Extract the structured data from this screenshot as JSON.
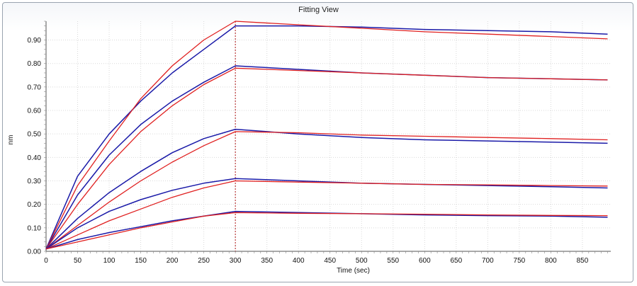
{
  "window": {
    "title": "Fitting View"
  },
  "chart_data": {
    "type": "line",
    "title": "Fitting View",
    "xlabel": "Time (sec)",
    "ylabel": "nm",
    "xlim": [
      0,
      895
    ],
    "ylim": [
      0,
      0.98
    ],
    "x_ticks": [
      0,
      50,
      100,
      150,
      200,
      250,
      300,
      350,
      400,
      450,
      500,
      550,
      600,
      650,
      700,
      750,
      800,
      850
    ],
    "y_ticks": [
      0.0,
      0.1,
      0.2,
      0.3,
      0.4,
      0.5,
      0.6,
      0.7,
      0.8,
      0.9
    ],
    "y_tick_labels": [
      "0.00",
      "0.10",
      "0.20",
      "0.30",
      "0.40",
      "0.50",
      "0.60",
      "0.70",
      "0.80",
      "0.90"
    ],
    "grid": true,
    "phase_marker_x": 300,
    "colors": {
      "measured": "#1a1aa8",
      "fit": "#e02020",
      "marker": "#b01818",
      "grid": "#d9d9d9"
    },
    "series": [
      {
        "kind": "measured",
        "x": [
          0,
          50,
          100,
          150,
          200,
          250,
          300,
          400,
          500,
          600,
          700,
          800,
          890
        ],
        "values": [
          0.01,
          0.32,
          0.5,
          0.64,
          0.76,
          0.86,
          0.96,
          0.96,
          0.955,
          0.945,
          0.94,
          0.935,
          0.925
        ]
      },
      {
        "kind": "fit",
        "x": [
          0,
          50,
          100,
          150,
          200,
          250,
          300,
          400,
          500,
          600,
          700,
          800,
          890
        ],
        "values": [
          0.01,
          0.28,
          0.47,
          0.65,
          0.79,
          0.9,
          0.98,
          0.965,
          0.95,
          0.935,
          0.925,
          0.915,
          0.905
        ]
      },
      {
        "kind": "measured",
        "x": [
          0,
          50,
          100,
          150,
          200,
          250,
          300,
          400,
          500,
          600,
          700,
          800,
          890
        ],
        "values": [
          0.01,
          0.24,
          0.41,
          0.54,
          0.64,
          0.72,
          0.79,
          0.775,
          0.76,
          0.75,
          0.74,
          0.735,
          0.73
        ]
      },
      {
        "kind": "fit",
        "x": [
          0,
          50,
          100,
          150,
          200,
          250,
          300,
          400,
          500,
          600,
          700,
          800,
          890
        ],
        "values": [
          0.01,
          0.2,
          0.37,
          0.51,
          0.62,
          0.71,
          0.78,
          0.77,
          0.76,
          0.75,
          0.74,
          0.735,
          0.73
        ]
      },
      {
        "kind": "measured",
        "x": [
          0,
          50,
          100,
          150,
          200,
          250,
          300,
          400,
          500,
          600,
          700,
          800,
          890
        ],
        "values": [
          0.01,
          0.14,
          0.25,
          0.34,
          0.42,
          0.48,
          0.52,
          0.5,
          0.485,
          0.475,
          0.47,
          0.465,
          0.46
        ]
      },
      {
        "kind": "fit",
        "x": [
          0,
          50,
          100,
          150,
          200,
          250,
          300,
          400,
          500,
          600,
          700,
          800,
          890
        ],
        "values": [
          0.01,
          0.11,
          0.21,
          0.3,
          0.38,
          0.45,
          0.51,
          0.505,
          0.495,
          0.49,
          0.485,
          0.48,
          0.475
        ]
      },
      {
        "kind": "measured",
        "x": [
          0,
          50,
          100,
          150,
          200,
          250,
          300,
          400,
          500,
          600,
          700,
          800,
          890
        ],
        "values": [
          0.01,
          0.1,
          0.17,
          0.22,
          0.26,
          0.29,
          0.31,
          0.3,
          0.29,
          0.285,
          0.28,
          0.275,
          0.27
        ]
      },
      {
        "kind": "fit",
        "x": [
          0,
          50,
          100,
          150,
          200,
          250,
          300,
          400,
          500,
          600,
          700,
          800,
          890
        ],
        "values": [
          0.01,
          0.07,
          0.13,
          0.18,
          0.23,
          0.27,
          0.3,
          0.295,
          0.29,
          0.285,
          0.283,
          0.28,
          0.278
        ]
      },
      {
        "kind": "measured",
        "x": [
          0,
          50,
          100,
          150,
          200,
          250,
          300,
          400,
          500,
          600,
          700,
          800,
          890
        ],
        "values": [
          0.01,
          0.05,
          0.08,
          0.105,
          0.13,
          0.15,
          0.17,
          0.165,
          0.16,
          0.155,
          0.152,
          0.15,
          0.145
        ]
      },
      {
        "kind": "fit",
        "x": [
          0,
          50,
          100,
          150,
          200,
          250,
          300,
          400,
          500,
          600,
          700,
          800,
          890
        ],
        "values": [
          0.01,
          0.04,
          0.07,
          0.1,
          0.125,
          0.15,
          0.165,
          0.162,
          0.16,
          0.158,
          0.155,
          0.153,
          0.152
        ]
      }
    ]
  }
}
